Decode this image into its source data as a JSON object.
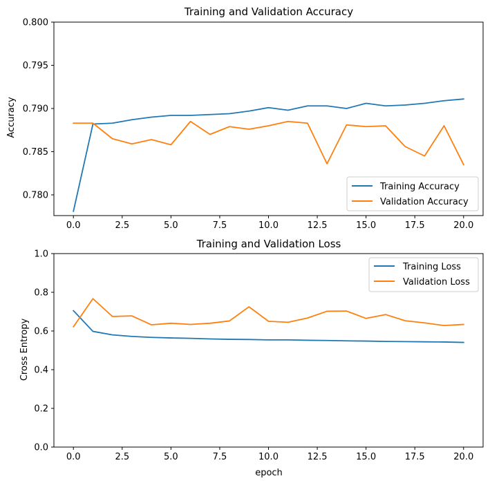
{
  "chart_data": [
    {
      "type": "line",
      "title": "Training and Validation Accuracy",
      "xlabel": "",
      "ylabel": "Accuracy",
      "xlim": [
        -1.0,
        21.0
      ],
      "ylim": [
        0.7776,
        0.8
      ],
      "x_ticks": [
        0.0,
        2.5,
        5.0,
        7.5,
        10.0,
        12.5,
        15.0,
        17.5,
        20.0
      ],
      "x_tick_labels": [
        "0.0",
        "2.5",
        "5.0",
        "7.5",
        "10.0",
        "12.5",
        "15.0",
        "17.5",
        "20.0"
      ],
      "y_ticks": [
        0.78,
        0.785,
        0.79,
        0.795,
        0.8
      ],
      "y_tick_labels": [
        "0.780",
        "0.785",
        "0.790",
        "0.795",
        "0.800"
      ],
      "grid": false,
      "legend_position": "lower-right",
      "x": [
        0,
        1,
        2,
        3,
        4,
        5,
        6,
        7,
        8,
        9,
        10,
        11,
        12,
        13,
        14,
        15,
        16,
        17,
        18,
        19,
        20
      ],
      "series": [
        {
          "name": "Training Accuracy",
          "color": "#1f77b4",
          "values": [
            0.7781,
            0.7882,
            0.7883,
            0.7887,
            0.789,
            0.7892,
            0.7892,
            0.7893,
            0.7894,
            0.7897,
            0.7901,
            0.7898,
            0.7903,
            0.7903,
            0.79,
            0.7906,
            0.7903,
            0.7904,
            0.7906,
            0.7909,
            0.7911
          ]
        },
        {
          "name": "Validation Accuracy",
          "color": "#ff7f0e",
          "values": [
            0.7883,
            0.7883,
            0.7865,
            0.7859,
            0.7864,
            0.7858,
            0.7885,
            0.787,
            0.7879,
            0.7876,
            0.788,
            0.7885,
            0.7883,
            0.7836,
            0.7881,
            0.7879,
            0.788,
            0.7856,
            0.7845,
            0.788,
            0.7835
          ]
        }
      ]
    },
    {
      "type": "line",
      "title": "Training and Validation Loss",
      "xlabel": "epoch",
      "ylabel": "Cross Entropy",
      "xlim": [
        -1.0,
        21.0
      ],
      "ylim": [
        0.0,
        1.0
      ],
      "x_ticks": [
        0.0,
        2.5,
        5.0,
        7.5,
        10.0,
        12.5,
        15.0,
        17.5,
        20.0
      ],
      "x_tick_labels": [
        "0.0",
        "2.5",
        "5.0",
        "7.5",
        "10.0",
        "12.5",
        "15.0",
        "17.5",
        "20.0"
      ],
      "y_ticks": [
        0.0,
        0.2,
        0.4,
        0.6,
        0.8,
        1.0
      ],
      "y_tick_labels": [
        "0.0",
        "0.2",
        "0.4",
        "0.6",
        "0.8",
        "1.0"
      ],
      "grid": false,
      "legend_position": "upper-right",
      "x": [
        0,
        1,
        2,
        3,
        4,
        5,
        6,
        7,
        8,
        9,
        10,
        11,
        12,
        13,
        14,
        15,
        16,
        17,
        18,
        19,
        20
      ],
      "series": [
        {
          "name": "Training Loss",
          "color": "#1f77b4",
          "values": [
            0.705,
            0.598,
            0.58,
            0.572,
            0.567,
            0.564,
            0.562,
            0.559,
            0.557,
            0.556,
            0.554,
            0.554,
            0.552,
            0.551,
            0.549,
            0.548,
            0.546,
            0.545,
            0.544,
            0.543,
            0.541
          ]
        },
        {
          "name": "Validation Loss",
          "color": "#ff7f0e",
          "values": [
            0.622,
            0.767,
            0.675,
            0.678,
            0.632,
            0.64,
            0.634,
            0.64,
            0.652,
            0.725,
            0.65,
            0.645,
            0.667,
            0.702,
            0.703,
            0.665,
            0.685,
            0.653,
            0.642,
            0.628,
            0.634
          ]
        }
      ]
    }
  ]
}
